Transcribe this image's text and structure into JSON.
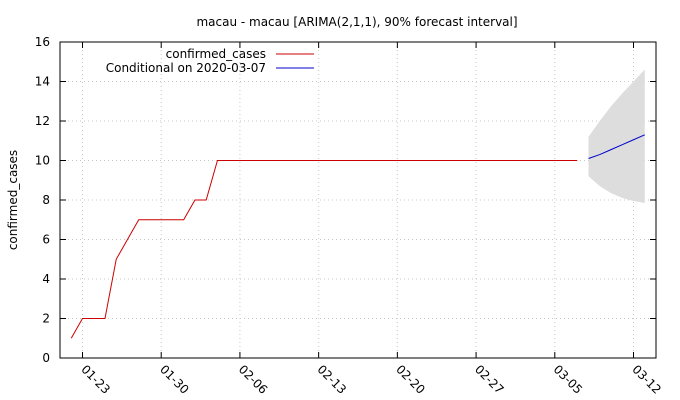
{
  "chart_data": {
    "type": "line",
    "title": "macau - macau [ARIMA(2,1,1), 90% forecast interval]",
    "xlabel": "",
    "ylabel": "confirmed_cases",
    "ylim": [
      0,
      16
    ],
    "yticks": [
      0,
      2,
      4,
      6,
      8,
      10,
      12,
      14,
      16
    ],
    "xlim": [
      "2020-01-21",
      "2020-03-14"
    ],
    "xticks": [
      "2020-01-23",
      "2020-01-30",
      "2020-02-06",
      "2020-02-13",
      "2020-02-20",
      "2020-02-27",
      "2020-03-05",
      "2020-03-12"
    ],
    "xtick_labels": [
      "01-23",
      "01-30",
      "02-06",
      "02-13",
      "02-20",
      "02-27",
      "03-05",
      "03-12"
    ],
    "grid": true,
    "legend_position": "top-left",
    "series": [
      {
        "name": "confirmed_cases",
        "color": "#cc0000",
        "points": [
          [
            "2020-01-22",
            1
          ],
          [
            "2020-01-23",
            2
          ],
          [
            "2020-01-24",
            2
          ],
          [
            "2020-01-25",
            2
          ],
          [
            "2020-01-26",
            5
          ],
          [
            "2020-01-27",
            6
          ],
          [
            "2020-01-28",
            7
          ],
          [
            "2020-01-29",
            7
          ],
          [
            "2020-01-30",
            7
          ],
          [
            "2020-01-31",
            7
          ],
          [
            "2020-02-01",
            7
          ],
          [
            "2020-02-02",
            8
          ],
          [
            "2020-02-03",
            8
          ],
          [
            "2020-02-04",
            10
          ],
          [
            "2020-02-05",
            10
          ],
          [
            "2020-02-06",
            10
          ],
          [
            "2020-02-10",
            10
          ],
          [
            "2020-02-15",
            10
          ],
          [
            "2020-02-20",
            10
          ],
          [
            "2020-02-25",
            10
          ],
          [
            "2020-03-01",
            10
          ],
          [
            "2020-03-06",
            10
          ],
          [
            "2020-03-07",
            10
          ]
        ]
      },
      {
        "name": "Conditional on 2020-03-07",
        "color": "#0000cc",
        "points": [
          [
            "2020-03-08",
            10.1
          ],
          [
            "2020-03-09",
            10.3
          ],
          [
            "2020-03-10",
            10.55
          ],
          [
            "2020-03-11",
            10.8
          ],
          [
            "2020-03-12",
            11.05
          ],
          [
            "2020-03-13",
            11.3
          ]
        ]
      }
    ],
    "forecast_interval": {
      "color": "#dddddd",
      "dates": [
        "2020-03-08",
        "2020-03-09",
        "2020-03-10",
        "2020-03-11",
        "2020-03-12",
        "2020-03-13"
      ],
      "upper": [
        11.2,
        12.0,
        12.75,
        13.4,
        14.0,
        14.6
      ],
      "lower": [
        9.2,
        8.7,
        8.35,
        8.1,
        7.95,
        7.85
      ]
    }
  }
}
